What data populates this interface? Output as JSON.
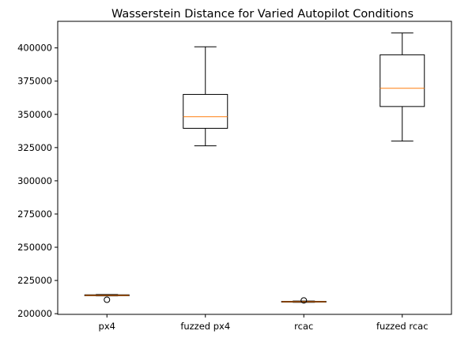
{
  "chart_data": {
    "type": "boxplot",
    "title": "Wasserstein Distance for Varied Autopilot Conditions",
    "xlabel": "",
    "ylabel": "",
    "categories": [
      "px4",
      "fuzzed px4",
      "rcac",
      "fuzzed rcac"
    ],
    "ylim": [
      199500,
      420000
    ],
    "yticks": [
      200000,
      225000,
      250000,
      275000,
      300000,
      325000,
      350000,
      375000,
      400000
    ],
    "ytick_labels": [
      "200000",
      "225000",
      "250000",
      "275000",
      "300000",
      "325000",
      "350000",
      "375000",
      "400000"
    ],
    "grid": false,
    "boxes": [
      {
        "name": "px4",
        "whisker_low": 213400,
        "q1": 213500,
        "median": 213800,
        "q3": 214200,
        "whisker_high": 214400,
        "outliers": [
          210500
        ]
      },
      {
        "name": "fuzzed px4",
        "whisker_low": 326300,
        "q1": 339500,
        "median": 348200,
        "q3": 365000,
        "whisker_high": 400800,
        "outliers": []
      },
      {
        "name": "rcac",
        "whisker_low": 208600,
        "q1": 208700,
        "median": 209000,
        "q3": 209300,
        "whisker_high": 209500,
        "outliers": [
          210000
        ]
      },
      {
        "name": "fuzzed rcac",
        "whisker_low": 329900,
        "q1": 355900,
        "median": 369600,
        "q3": 394800,
        "whisker_high": 411200,
        "outliers": []
      }
    ],
    "colors": {
      "box": "#000000",
      "median": "#ff7f0e",
      "axis": "#000000",
      "background": "#ffffff"
    }
  }
}
